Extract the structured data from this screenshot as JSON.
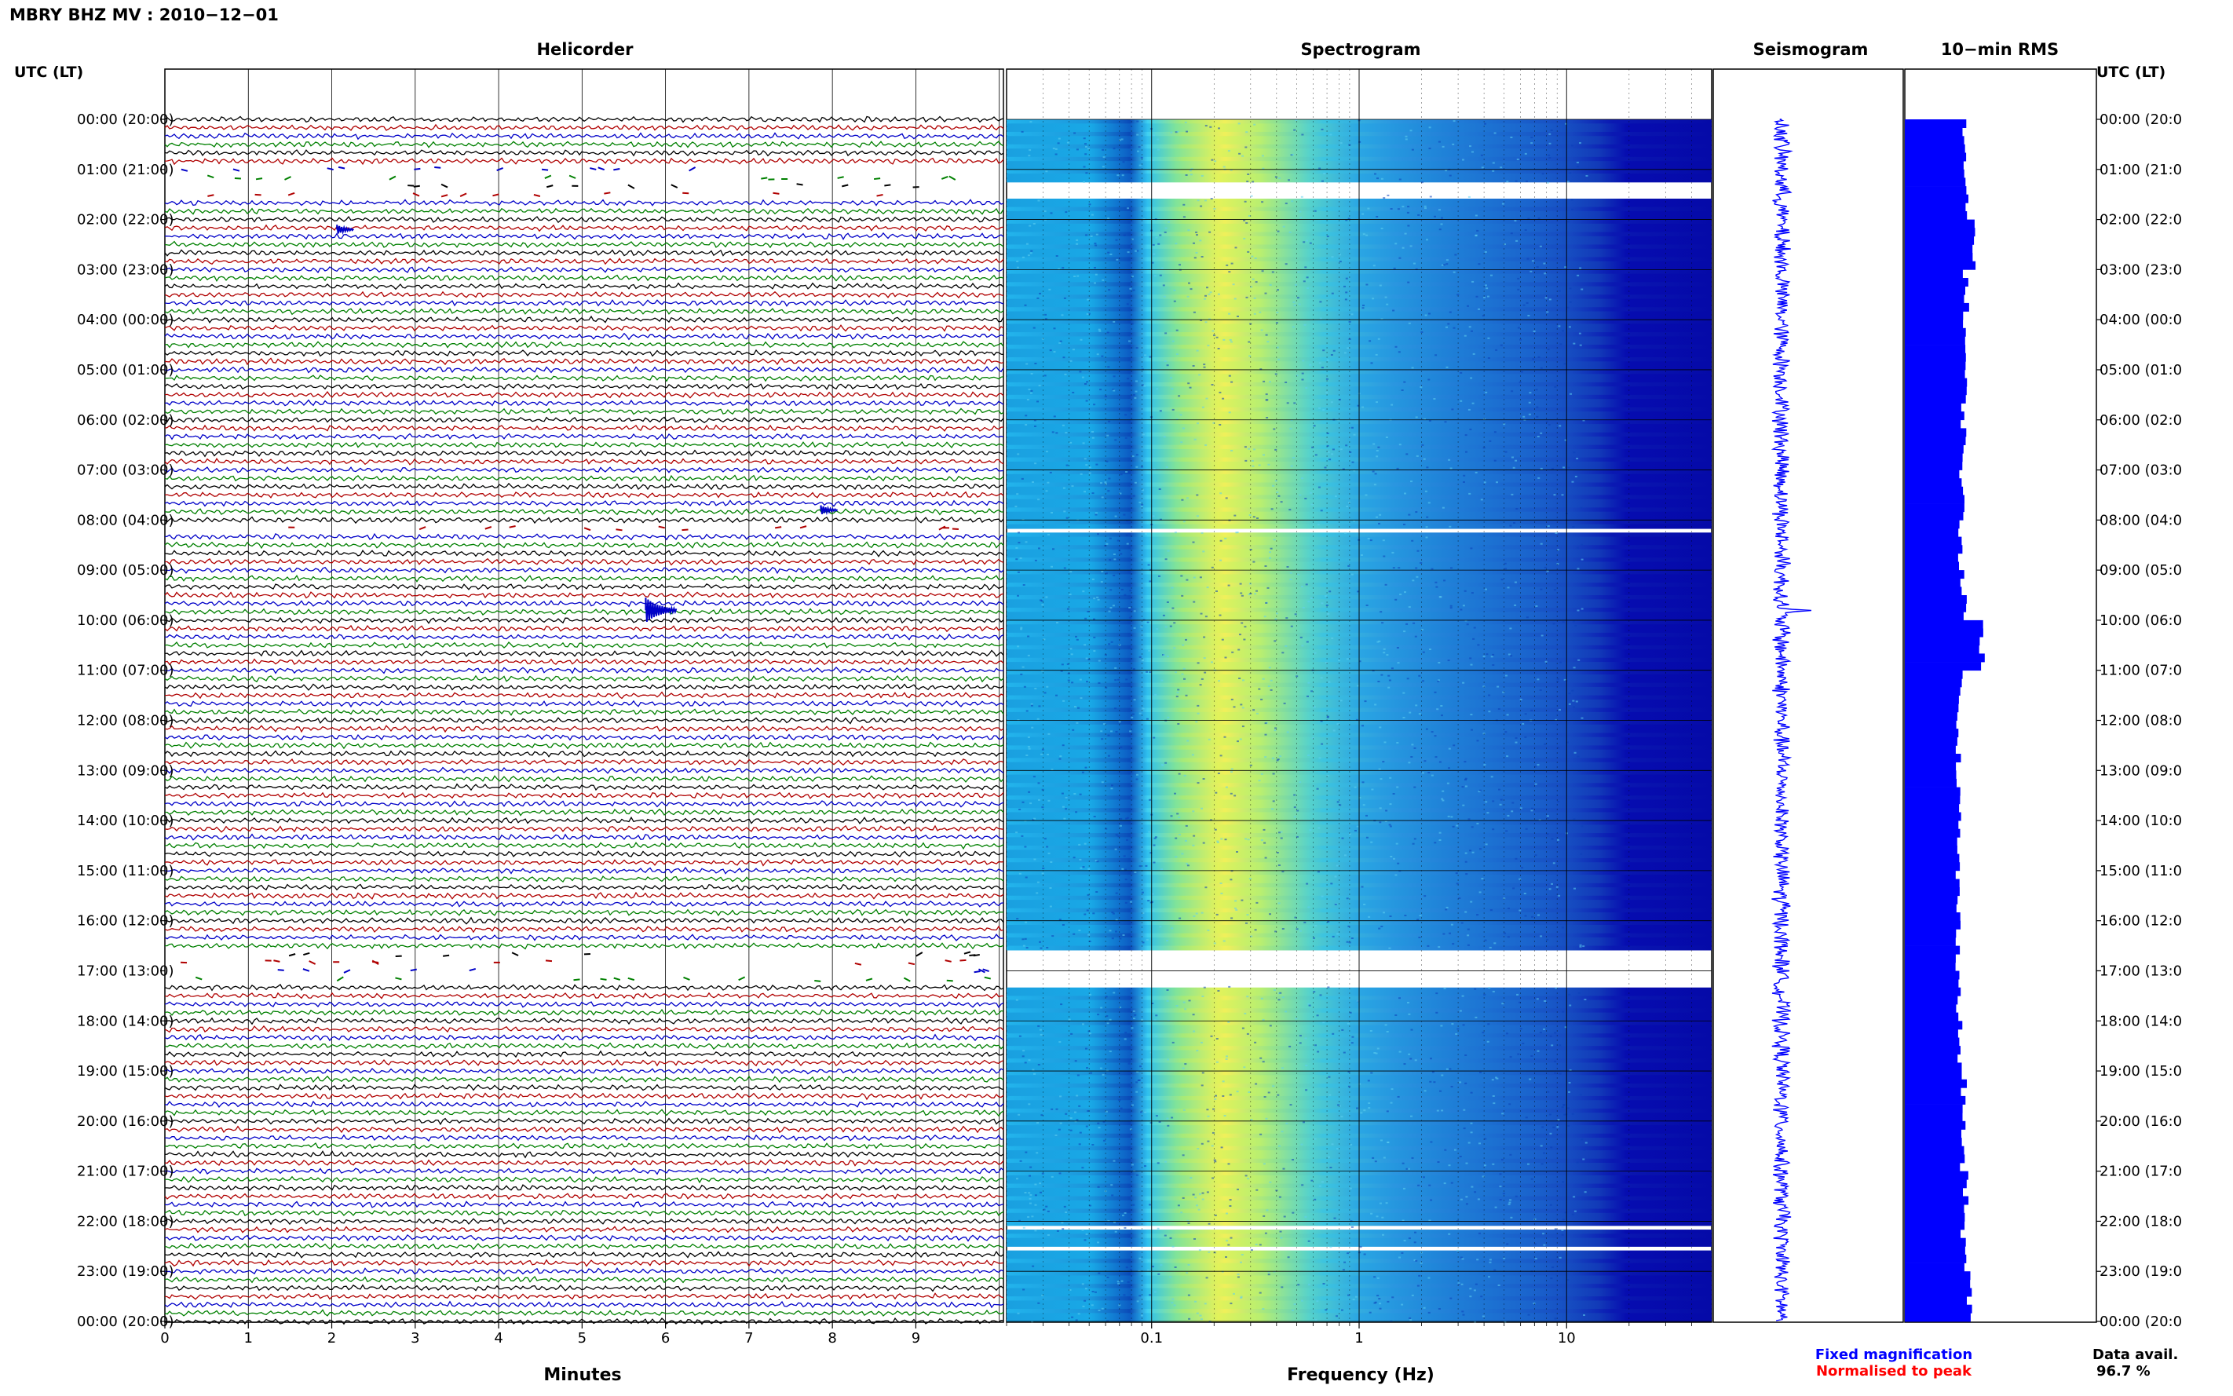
{
  "title": "MBRY BHZ MV : 2010−12−01",
  "left_axis_label": "UTC (LT)",
  "right_axis_label": "UTC (LT)",
  "panels": {
    "helicorder": "Helicorder",
    "spectrogram": "Spectrogram",
    "seismogram": "Seismogram",
    "rms": "10−min RMS"
  },
  "time_labels": [
    "00:00 (20:00)",
    "01:00 (21:00)",
    "02:00 (22:00)",
    "03:00 (23:00)",
    "04:00 (00:00)",
    "05:00 (01:00)",
    "06:00 (02:00)",
    "07:00 (03:00)",
    "08:00 (04:00)",
    "09:00 (05:00)",
    "10:00 (06:00)",
    "11:00 (07:00)",
    "12:00 (08:00)",
    "13:00 (09:00)",
    "14:00 (10:00)",
    "15:00 (11:00)",
    "16:00 (12:00)",
    "17:00 (13:00)",
    "18:00 (14:00)",
    "19:00 (15:00)",
    "20:00 (16:00)",
    "21:00 (17:00)",
    "22:00 (18:00)",
    "23:00 (19:00)",
    "00:00 (20:00)"
  ],
  "right_time_labels": [
    "00:00 (20:0",
    "01:00 (21:0",
    "02:00 (22:0",
    "03:00 (23:0",
    "04:00 (00:0",
    "05:00 (01:0",
    "06:00 (02:0",
    "07:00 (03:0",
    "08:00 (04:0",
    "09:00 (05:0",
    "10:00 (06:0",
    "11:00 (07:0",
    "12:00 (08:0",
    "13:00 (09:0",
    "14:00 (10:0",
    "15:00 (11:0",
    "16:00 (12:0",
    "17:00 (13:0",
    "18:00 (14:0",
    "19:00 (15:0",
    "20:00 (16:0",
    "21:00 (17:0",
    "22:00 (18:0",
    "23:00 (19:0",
    "00:00 (20:0"
  ],
  "minutes_axis": {
    "label": "Minutes",
    "ticks": [
      "0",
      "1",
      "2",
      "3",
      "4",
      "5",
      "6",
      "7",
      "8",
      "9"
    ]
  },
  "frequency_axis": {
    "label": "Frequency (Hz)",
    "scale": "log",
    "ticks": [
      "0.1",
      "1",
      "10"
    ],
    "range": [
      0.02,
      50
    ]
  },
  "legend": {
    "fixed": "Fixed magnification",
    "normalised": "Normalised to peak"
  },
  "data_availability": {
    "label": "Data avail.",
    "value": "96.7 %"
  },
  "colors": {
    "trace_cycle": [
      "#000000",
      "#b00000",
      "#0000c8",
      "#008000"
    ],
    "seismogram": "#0000ff",
    "rms": "#0000ff",
    "legend_fixed": "#0000ff",
    "legend_normalised": "#ff0000"
  },
  "chart_data": [
    {
      "type": "line",
      "name": "helicorder",
      "rows_per_hour": 6,
      "minutes_per_row": 10,
      "xlim": [
        0,
        10
      ],
      "gaps_utc_hours": [
        [
          1.0,
          1.5
        ],
        [
          16.6,
          17.3
        ],
        [
          8.1,
          8.2
        ]
      ],
      "events_utc": [
        {
          "hour": 9.8,
          "minute": 5.8,
          "amplitude": "large"
        },
        {
          "hour": 7.8,
          "minute": 7.9,
          "amplitude": "small"
        },
        {
          "hour": 2.2,
          "minute": 2.1,
          "amplitude": "small"
        }
      ]
    },
    {
      "type": "heatmap",
      "name": "spectrogram",
      "x_scale": "log",
      "xlim": [
        0.02,
        50
      ],
      "peak_band_hz": [
        0.15,
        0.5
      ],
      "gaps_utc_hours": [
        [
          1.25,
          1.5
        ],
        [
          16.55,
          17.3
        ],
        [
          8.15,
          8.2
        ],
        [
          22.05,
          22.1
        ],
        [
          22.5,
          22.55
        ]
      ]
    },
    {
      "type": "line",
      "name": "seismogram",
      "event_hour": 9.8
    },
    {
      "type": "bar",
      "name": "10-min RMS",
      "orientation": "horizontal",
      "units": "relative",
      "values_hourly": [
        0.72,
        0.74,
        0.85,
        0.75,
        0.74,
        0.73,
        0.72,
        0.7,
        0.69,
        0.72,
        0.95,
        0.68,
        0.66,
        0.66,
        0.65,
        0.65,
        0.66,
        0.66,
        0.67,
        0.72,
        0.71,
        0.74,
        0.72,
        0.8
      ]
    }
  ]
}
